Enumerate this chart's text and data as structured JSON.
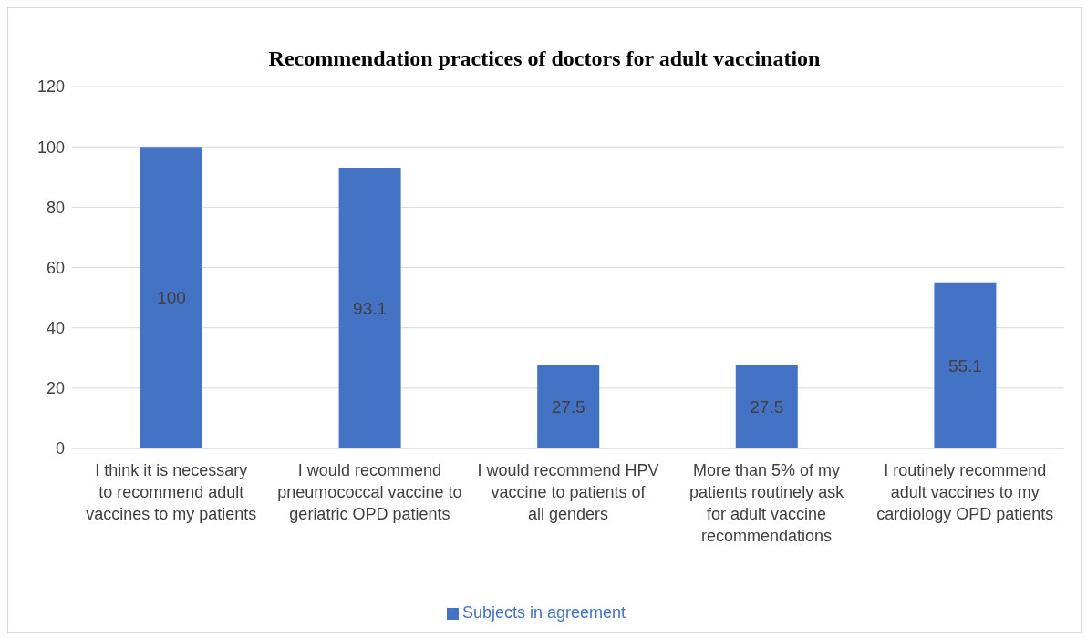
{
  "chart_data": {
    "type": "bar",
    "title": "Recommendation practices of doctors for adult vaccination",
    "categories": [
      "I think it is necessary to recommend adult vaccines to my patients",
      "I would recommend pneumococcal vaccine to geriatric OPD patients",
      "I would recommend HPV vaccine to patients of all genders",
      "More than 5% of my patients routinely ask for adult vaccine recommendations",
      "I routinely recommend adult vaccines to my cardiology OPD patients"
    ],
    "series": [
      {
        "name": "Subjects in agreement",
        "color": "#4472c4",
        "values": [
          100,
          93.1,
          27.5,
          27.5,
          55.1
        ]
      }
    ],
    "ylim": [
      0,
      120
    ],
    "yticks": [
      0,
      20,
      40,
      60,
      80,
      100,
      120
    ],
    "grid": "y",
    "legend": "bottom",
    "data_labels": true
  }
}
